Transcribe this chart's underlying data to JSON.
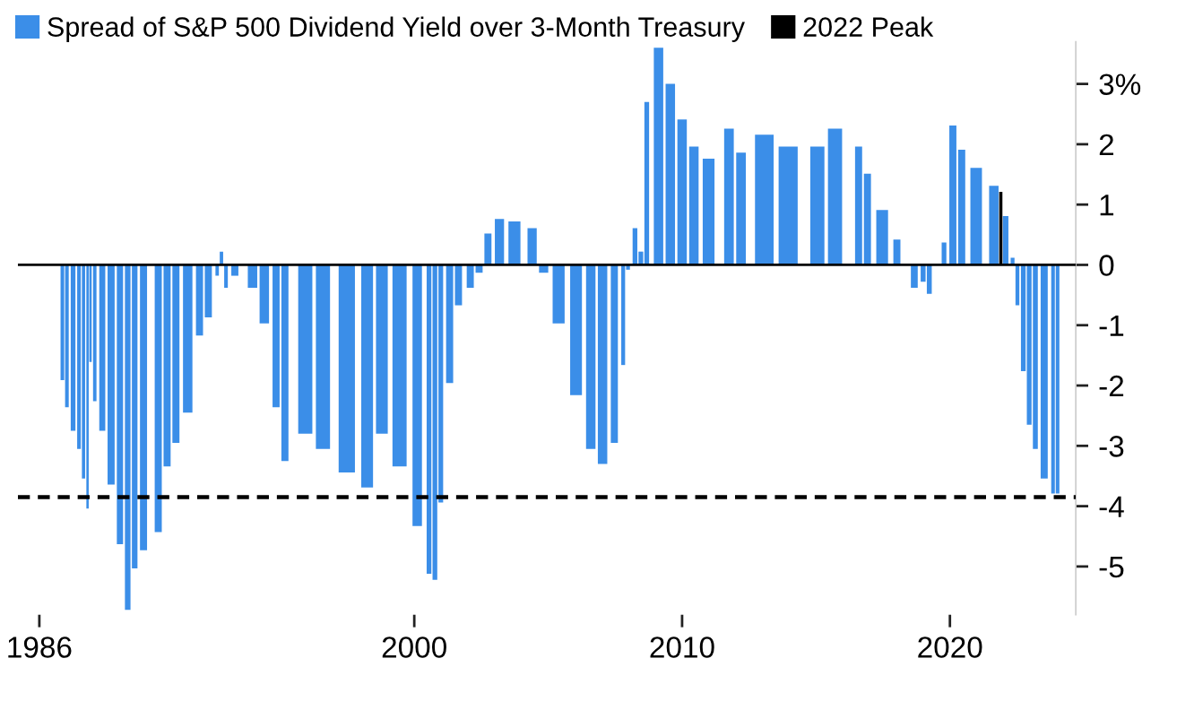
{
  "chart_data": {
    "type": "bar",
    "series": [
      {
        "name": "Spread of S&P 500 Dividend Yield over 3-Month Treasury",
        "color": "#3b8ee8",
        "x": [
          1986.86,
          1987.03,
          1987.26,
          1987.48,
          1987.65,
          1987.8,
          1987.91,
          1988.07,
          1988.35,
          1988.68,
          1989.01,
          1989.3,
          1989.56,
          1989.89,
          1990.44,
          1990.77,
          1991.1,
          1991.54,
          1991.98,
          1992.31,
          1992.64,
          1992.8,
          1992.97,
          1993.3,
          1993.96,
          1994.4,
          1994.84,
          1995.17,
          1995.93,
          1996.59,
          1997.48,
          1998.24,
          1998.79,
          1999.45,
          2000.11,
          2000.55,
          2000.77,
          2000.99,
          2001.32,
          2001.65,
          2002.09,
          2002.42,
          2002.75,
          2003.18,
          2003.74,
          2004.4,
          2004.83,
          2005.39,
          2006.04,
          2006.59,
          2007.03,
          2007.47,
          2007.8,
          2007.98,
          2008.24,
          2008.46,
          2008.68,
          2009.12,
          2009.56,
          2010.0,
          2010.44,
          2010.99,
          2011.75,
          2012.2,
          2013.07,
          2013.96,
          2015.05,
          2015.71,
          2016.59,
          2016.92,
          2017.47,
          2018.02,
          2018.35,
          2018.67,
          2019.0,
          2019.23,
          2019.56,
          2019.78,
          2020.11,
          2020.44,
          2020.98,
          2021.64,
          2022.08,
          2022.34,
          2022.52,
          2022.74,
          2022.96,
          2023.19,
          2023.52,
          2023.85,
          2024.02
        ],
        "values": [
          -1.91,
          -2.36,
          -2.75,
          -3.05,
          -3.54,
          -4.04,
          -1.61,
          -2.26,
          -2.75,
          -3.64,
          -4.63,
          -5.72,
          -5.03,
          -4.73,
          -4.43,
          -3.34,
          -2.95,
          -2.45,
          -1.17,
          -0.87,
          -0.18,
          0.22,
          -0.38,
          -0.18,
          -0.38,
          -0.97,
          -2.36,
          -3.25,
          -2.8,
          -3.05,
          -3.44,
          -3.69,
          -2.8,
          -3.34,
          -4.33,
          -5.12,
          -5.22,
          -3.94,
          -1.96,
          -0.67,
          -0.38,
          -0.13,
          0.52,
          0.76,
          0.72,
          0.61,
          -0.13,
          -0.97,
          -2.16,
          -3.05,
          -3.3,
          -2.95,
          -1.66,
          -0.08,
          0.61,
          0.22,
          2.7,
          3.6,
          3.0,
          2.41,
          1.96,
          1.76,
          2.26,
          1.86,
          2.16,
          1.96,
          1.96,
          2.26,
          1.96,
          1.51,
          0.91,
          0.42,
          0.02,
          -0.38,
          -0.28,
          -0.48,
          null,
          0.37,
          2.31,
          1.91,
          1.61,
          1.31,
          0.81,
          0.12,
          -0.67,
          -1.76,
          -2.65,
          -3.05,
          -3.54,
          -3.79,
          -3.79
        ]
      },
      {
        "name": "2022 Peak",
        "color": "#000000",
        "x": [
          2021.9
        ],
        "values": [
          1.21
        ]
      }
    ],
    "xlim": [
      1985.2,
      2024.7
    ],
    "xticks": [
      1986,
      2000,
      2010,
      2020
    ],
    "ylim": [
      -5.8,
      3.7
    ],
    "yticks": [
      {
        "value": 3,
        "label": "3%"
      },
      2,
      1,
      0,
      -1,
      -2,
      -3,
      -4,
      -5
    ],
    "ref_lines": [
      {
        "axis": "y",
        "value": 0,
        "color": "#000000",
        "line_style": "solid"
      },
      {
        "axis": "y",
        "value": -3.85,
        "color": "#000000",
        "line_style": "dashed"
      }
    ],
    "grid": false,
    "legend": "top left"
  }
}
